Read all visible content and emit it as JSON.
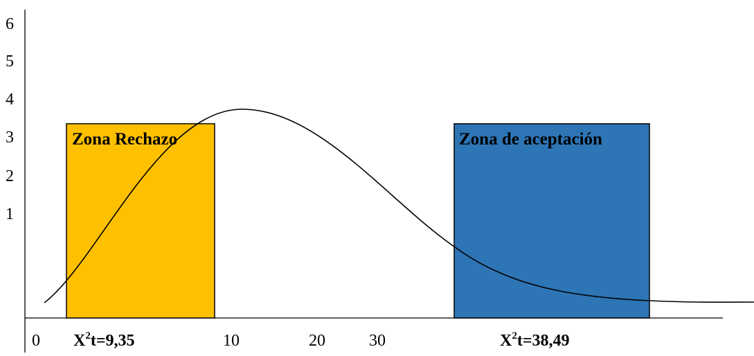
{
  "y_ticks": [
    "6",
    "5",
    "4",
    "3",
    "2",
    "1"
  ],
  "x_ticks": [
    "0",
    "10",
    "20",
    "30"
  ],
  "zones": {
    "rechazo": {
      "label": "Zona Rechazo",
      "color": "#FFC000"
    },
    "aceptacion": {
      "label": "Zona de aceptación",
      "color": "#2E75B6"
    }
  },
  "critical_values": {
    "left": {
      "symbol": "X",
      "exponent": "2",
      "text": "t=9,35"
    },
    "right": {
      "symbol": "X",
      "exponent": "2",
      "text": "t=38,49"
    }
  },
  "curve": {
    "color": "#000000"
  }
}
